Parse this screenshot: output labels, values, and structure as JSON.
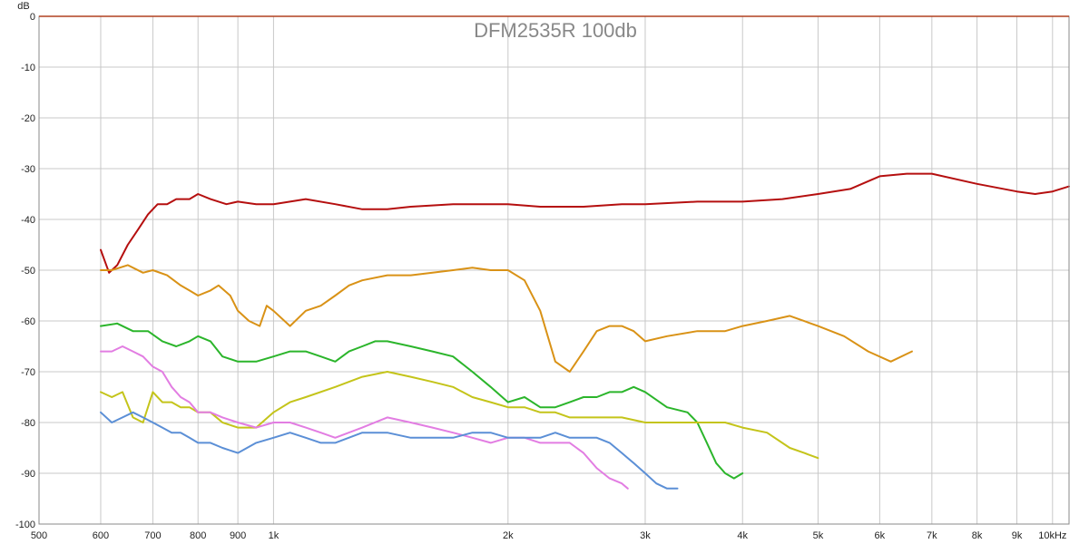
{
  "chart_data": {
    "type": "line",
    "title": "DFM2535R 100db",
    "xlabel": "kHz",
    "ylabel": "dB",
    "xscale": "log",
    "xlim": [
      500,
      10500
    ],
    "ylim": [
      -100,
      0
    ],
    "x_ticks": [
      {
        "value": 500,
        "label": "500"
      },
      {
        "value": 600,
        "label": "600"
      },
      {
        "value": 700,
        "label": "700"
      },
      {
        "value": 800,
        "label": "800"
      },
      {
        "value": 900,
        "label": "900"
      },
      {
        "value": 1000,
        "label": "1k"
      },
      {
        "value": 2000,
        "label": "2k"
      },
      {
        "value": 3000,
        "label": "3k"
      },
      {
        "value": 4000,
        "label": "4k"
      },
      {
        "value": 5000,
        "label": "5k"
      },
      {
        "value": 6000,
        "label": "6k"
      },
      {
        "value": 7000,
        "label": "7k"
      },
      {
        "value": 8000,
        "label": "8k"
      },
      {
        "value": 9000,
        "label": "9k"
      },
      {
        "value": 10000,
        "label": "10kHz"
      }
    ],
    "y_ticks": [
      {
        "value": 0,
        "label": "0"
      },
      {
        "value": -10,
        "label": "-10"
      },
      {
        "value": -20,
        "label": "-20"
      },
      {
        "value": -30,
        "label": "-30"
      },
      {
        "value": -40,
        "label": "-40"
      },
      {
        "value": -50,
        "label": "-50"
      },
      {
        "value": -60,
        "label": "-60"
      },
      {
        "value": -70,
        "label": "-70"
      },
      {
        "value": -80,
        "label": "-80"
      },
      {
        "value": -90,
        "label": "-90"
      },
      {
        "value": -100,
        "label": "-100"
      }
    ],
    "grid": true,
    "series": [
      {
        "color": "#b50f0f",
        "x": [
          600,
          615,
          630,
          650,
          670,
          690,
          710,
          730,
          750,
          780,
          800,
          830,
          870,
          900,
          950,
          1000,
          1050,
          1100,
          1200,
          1300,
          1400,
          1500,
          1700,
          2000,
          2200,
          2500,
          2800,
          3000,
          3500,
          4000,
          4500,
          5000,
          5500,
          6000,
          6500,
          7000,
          8000,
          9000,
          9500,
          10000,
          10500
        ],
        "y": [
          -46,
          -50.5,
          -49,
          -45,
          -42,
          -39,
          -37,
          -37,
          -36,
          -36,
          -35,
          -36,
          -37,
          -36.5,
          -37,
          -37,
          -36.5,
          -36,
          -37,
          -38,
          -38,
          -37.5,
          -37,
          -37,
          -37.5,
          -37.5,
          -37,
          -37,
          -36.5,
          -36.5,
          -36,
          -35,
          -34,
          -31.5,
          -31,
          -31,
          -33,
          -34.5,
          -35,
          -34.5,
          -33.5
        ]
      },
      {
        "color": "#d99216",
        "x": [
          600,
          620,
          650,
          680,
          700,
          730,
          760,
          780,
          800,
          830,
          850,
          880,
          900,
          930,
          960,
          980,
          1000,
          1050,
          1100,
          1150,
          1200,
          1250,
          1300,
          1400,
          1500,
          1600,
          1700,
          1800,
          1900,
          2000,
          2100,
          2200,
          2300,
          2400,
          2500,
          2600,
          2700,
          2800,
          2900,
          3000,
          3200,
          3500,
          3800,
          4000,
          4300,
          4600,
          5000,
          5400,
          5800,
          6200,
          6600
        ],
        "y": [
          -50,
          -50,
          -49,
          -50.5,
          -50,
          -51,
          -53,
          -54,
          -55,
          -54,
          -53,
          -55,
          -58,
          -60,
          -61,
          -57,
          -58,
          -61,
          -58,
          -57,
          -55,
          -53,
          -52,
          -51,
          -51,
          -50.5,
          -50,
          -49.5,
          -50,
          -50,
          -52,
          -58,
          -68,
          -70,
          -66,
          -62,
          -61,
          -61,
          -62,
          -64,
          -63,
          -62,
          -62,
          -61,
          -60,
          -59,
          -61,
          -63,
          -66,
          -68,
          -66
        ]
      },
      {
        "color": "#2bb52b",
        "x": [
          600,
          630,
          660,
          690,
          720,
          750,
          780,
          800,
          830,
          860,
          900,
          950,
          1000,
          1050,
          1100,
          1150,
          1200,
          1250,
          1300,
          1350,
          1400,
          1500,
          1600,
          1700,
          1800,
          1900,
          2000,
          2100,
          2200,
          2300,
          2400,
          2500,
          2600,
          2700,
          2800,
          2900,
          3000,
          3200,
          3400,
          3500,
          3600,
          3700,
          3800,
          3900,
          4000
        ],
        "y": [
          -61,
          -60.5,
          -62,
          -62,
          -64,
          -65,
          -64,
          -63,
          -64,
          -67,
          -68,
          -68,
          -67,
          -66,
          -66,
          -67,
          -68,
          -66,
          -65,
          -64,
          -64,
          -65,
          -66,
          -67,
          -70,
          -73,
          -76,
          -75,
          -77,
          -77,
          -76,
          -75,
          -75,
          -74,
          -74,
          -73,
          -74,
          -77,
          -78,
          -80,
          -84,
          -88,
          -90,
          -91,
          -90
        ]
      },
      {
        "color": "#c4c41a",
        "x": [
          600,
          620,
          640,
          660,
          680,
          700,
          720,
          740,
          760,
          780,
          800,
          830,
          860,
          900,
          950,
          1000,
          1050,
          1100,
          1200,
          1300,
          1400,
          1500,
          1600,
          1700,
          1800,
          1900,
          2000,
          2100,
          2200,
          2300,
          2400,
          2600,
          2800,
          3000,
          3200,
          3500,
          3800,
          4000,
          4300,
          4600,
          4800,
          5000
        ],
        "y": [
          -74,
          -75,
          -74,
          -79,
          -80,
          -74,
          -76,
          -76,
          -77,
          -77,
          -78,
          -78,
          -80,
          -81,
          -81,
          -78,
          -76,
          -75,
          -73,
          -71,
          -70,
          -71,
          -72,
          -73,
          -75,
          -76,
          -77,
          -77,
          -78,
          -78,
          -79,
          -79,
          -79,
          -80,
          -80,
          -80,
          -80,
          -81,
          -82,
          -85,
          -86,
          -87
        ]
      },
      {
        "color": "#e27de2",
        "x": [
          600,
          620,
          640,
          660,
          680,
          700,
          720,
          740,
          760,
          780,
          800,
          830,
          860,
          900,
          950,
          1000,
          1050,
          1100,
          1150,
          1200,
          1300,
          1400,
          1500,
          1600,
          1700,
          1800,
          1900,
          2000,
          2100,
          2200,
          2300,
          2400,
          2500,
          2600,
          2700,
          2800,
          2850
        ],
        "y": [
          -66,
          -66,
          -65,
          -66,
          -67,
          -69,
          -70,
          -73,
          -75,
          -76,
          -78,
          -78,
          -79,
          -80,
          -81,
          -80,
          -80,
          -81,
          -82,
          -83,
          -81,
          -79,
          -80,
          -81,
          -82,
          -83,
          -84,
          -83,
          -83,
          -84,
          -84,
          -84,
          -86,
          -89,
          -91,
          -92,
          -93
        ]
      },
      {
        "color": "#5b8fd6",
        "x": [
          600,
          620,
          640,
          660,
          680,
          700,
          720,
          740,
          760,
          780,
          800,
          830,
          860,
          900,
          950,
          1000,
          1050,
          1100,
          1150,
          1200,
          1300,
          1400,
          1500,
          1600,
          1700,
          1800,
          1900,
          2000,
          2100,
          2200,
          2300,
          2400,
          2500,
          2600,
          2700,
          2800,
          2900,
          3000,
          3100,
          3200,
          3300
        ],
        "y": [
          -78,
          -80,
          -79,
          -78,
          -79,
          -80,
          -81,
          -82,
          -82,
          -83,
          -84,
          -84,
          -85,
          -86,
          -84,
          -83,
          -82,
          -83,
          -84,
          -84,
          -82,
          -82,
          -83,
          -83,
          -83,
          -82,
          -82,
          -83,
          -83,
          -83,
          -82,
          -83,
          -83,
          -83,
          -84,
          -86,
          -88,
          -90,
          -92,
          -93,
          -93
        ]
      }
    ]
  }
}
